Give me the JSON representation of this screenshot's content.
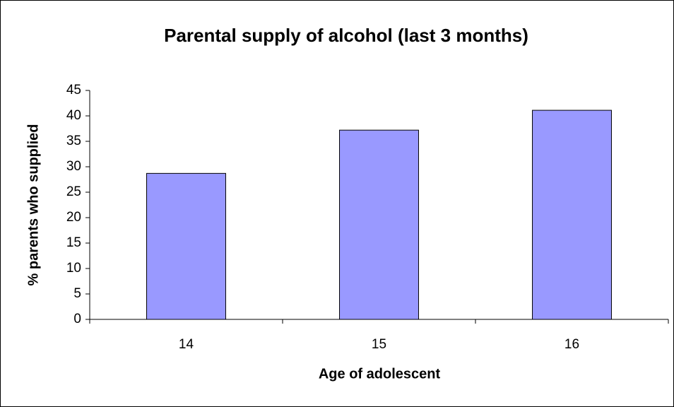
{
  "chart_data": {
    "type": "bar",
    "title": "Parental supply of alcohol (last 3 months)",
    "x_label": "Age of adolescent",
    "y_label": "% parents who supplied",
    "categories": [
      "14",
      "15",
      "16"
    ],
    "values": [
      28.7,
      37.2,
      41.1
    ],
    "color": "#9999ff",
    "ylim": [
      0,
      45
    ],
    "yticks": [
      0,
      5,
      10,
      15,
      20,
      25,
      30,
      35,
      40,
      45
    ],
    "grid": false
  }
}
